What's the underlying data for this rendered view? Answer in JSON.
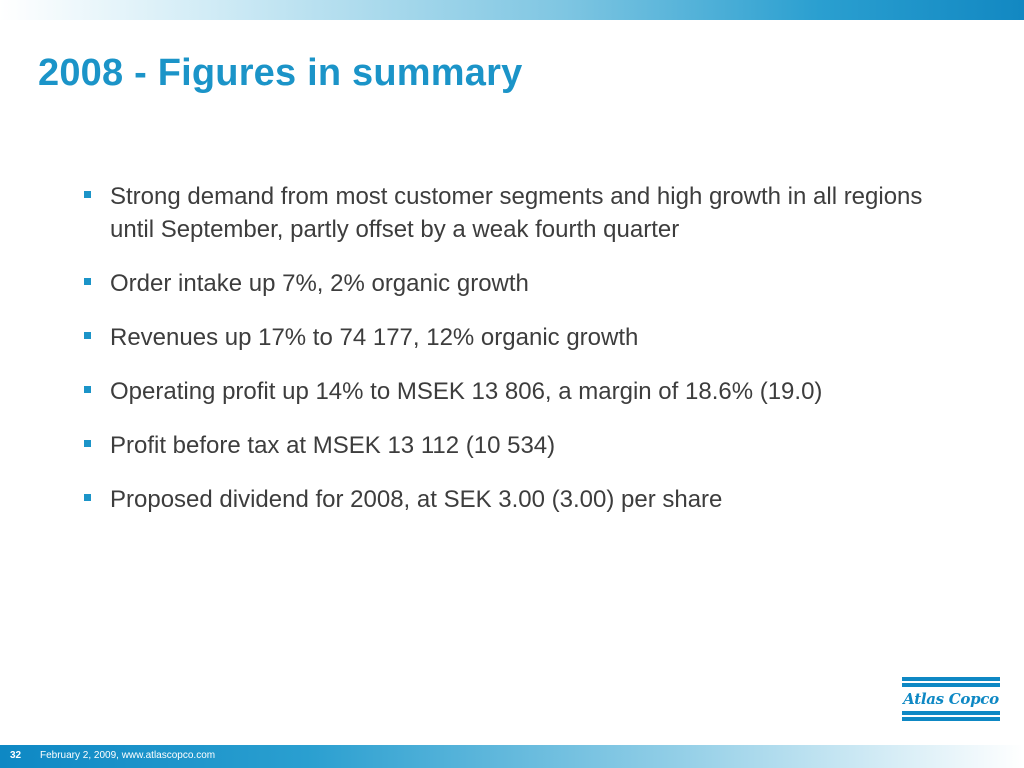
{
  "slide": {
    "title": "2008 - Figures in summary",
    "bullets": [
      "Strong demand from most customer segments and high growth in all regions until September, partly offset by a weak fourth quarter",
      "Order intake up 7%, 2% organic growth",
      "Revenues up 17% to 74 177, 12% organic growth",
      "Operating profit up 14% to MSEK 13 806, a margin of 18.6% (19.0)",
      "Profit before tax at MSEK 13 112 (10 534)",
      "Proposed dividend for 2008, at SEK 3.00 (3.00) per share"
    ]
  },
  "footer": {
    "page_number": "32",
    "text": "February 2, 2009, www.atlascopco.com"
  },
  "logo": {
    "text": "Atlas Copco",
    "icon": "atlas-copco-logo"
  },
  "colors": {
    "accent": "#1b94c8",
    "body_text": "#3d3d3d",
    "brand_blue": "#0e88c4"
  }
}
